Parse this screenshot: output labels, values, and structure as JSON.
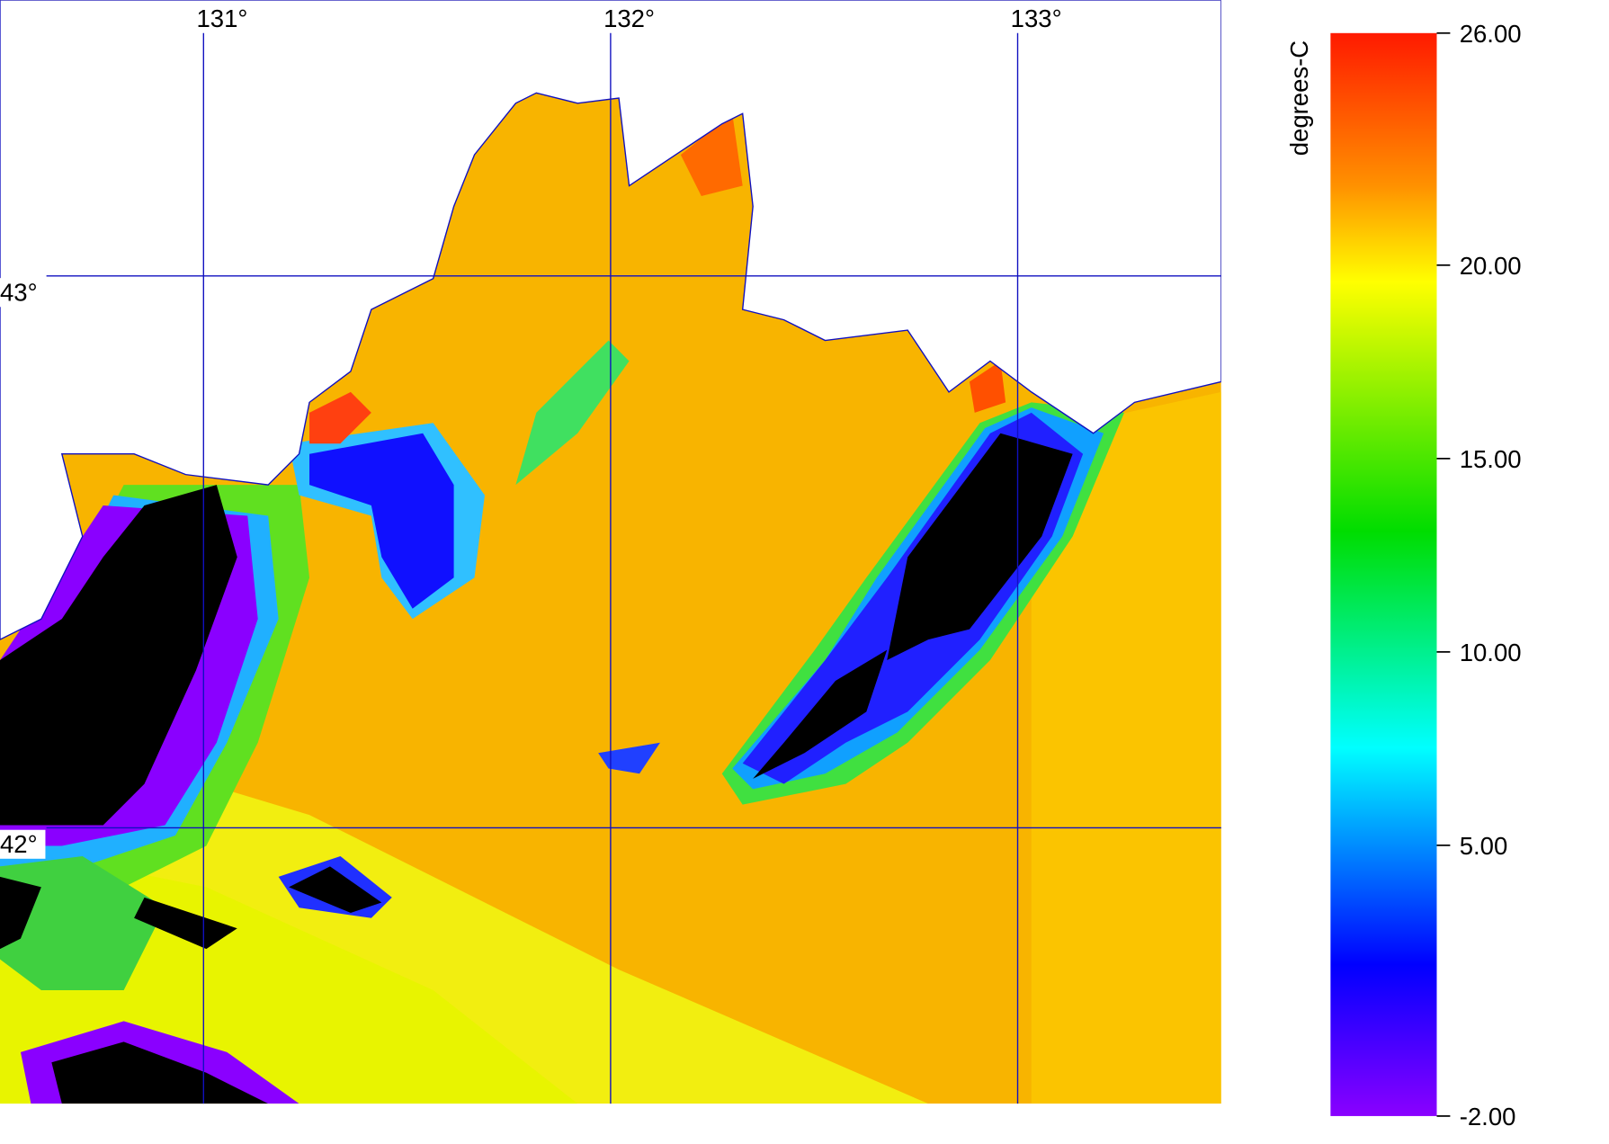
{
  "map": {
    "xlim": [
      130.5,
      133.5
    ],
    "ylim": [
      41.5,
      43.5
    ],
    "lon_ticks": [
      {
        "value": 131,
        "label": "131°"
      },
      {
        "value": 132,
        "label": "132°"
      },
      {
        "value": 133,
        "label": "133°"
      }
    ],
    "lat_ticks": [
      {
        "value": 43,
        "label": "43°"
      },
      {
        "value": 42,
        "label": "42°"
      }
    ]
  },
  "colorbar": {
    "label": "degrees-C",
    "range": [
      -2,
      26
    ],
    "ticks": [
      {
        "value": 26,
        "label": "26.00"
      },
      {
        "value": 20,
        "label": "20.00"
      },
      {
        "value": 15,
        "label": "15.00"
      },
      {
        "value": 10,
        "label": "10.00"
      },
      {
        "value": 5,
        "label": "5.00"
      },
      {
        "value": -2,
        "label": "-2.00"
      }
    ]
  }
}
